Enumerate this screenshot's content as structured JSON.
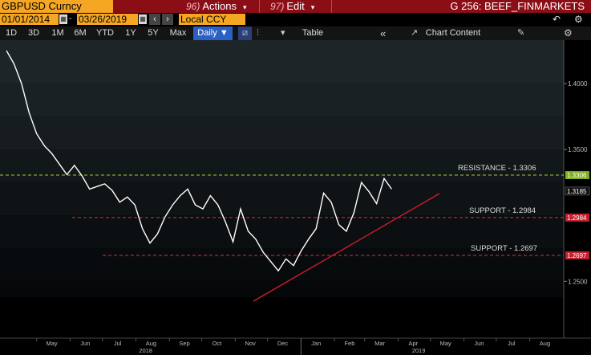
{
  "toolbar": {
    "ticker": "GBPUSD Curncy",
    "actions_num": "96)",
    "actions_label": "Actions",
    "edit_num": "97)",
    "edit_label": "Edit",
    "page_title": "G 256: BEEF_FINMARKETS"
  },
  "dates": {
    "start": "01/01/2014",
    "end": "03/26/2019",
    "currency": "Local CCY",
    "calendar_icon": "calendar-icon",
    "prev_icon": "chevron-left-icon",
    "next_icon": "chevron-right-icon"
  },
  "ranges": {
    "buttons": [
      "1D",
      "3D",
      "1M",
      "6M",
      "YTD",
      "1Y",
      "5Y",
      "Max"
    ],
    "frequency": "Daily",
    "table_label": "Table",
    "chart_content_label": "Chart Content"
  },
  "colors": {
    "topbar": "#8b0e17",
    "accent": "#f5a623",
    "active": "#2a61c7",
    "resistance": "#9acd32",
    "support": "#e0293a",
    "trend": "#d81c2c",
    "price_line": "#ffffff"
  },
  "chart_data": {
    "type": "line",
    "series": [
      {
        "x": [
          "2018-04-03",
          "2018-04-10",
          "2018-04-17",
          "2018-04-24",
          "2018-05-01",
          "2018-05-08",
          "2018-05-15",
          "2018-05-22",
          "2018-05-29",
          "2018-06-05",
          "2018-06-12",
          "2018-06-19",
          "2018-06-26",
          "2018-07-03",
          "2018-07-10",
          "2018-07-17",
          "2018-07-24",
          "2018-07-31",
          "2018-08-07",
          "2018-08-14",
          "2018-08-21",
          "2018-08-28",
          "2018-09-04",
          "2018-09-11",
          "2018-09-18",
          "2018-09-25",
          "2018-10-02",
          "2018-10-09",
          "2018-10-16",
          "2018-10-23",
          "2018-10-30",
          "2018-11-06",
          "2018-11-13",
          "2018-11-20",
          "2018-11-27",
          "2018-12-04",
          "2018-12-11",
          "2018-12-18",
          "2018-12-25",
          "2019-01-01",
          "2019-01-08",
          "2019-01-15",
          "2019-01-22",
          "2019-01-29",
          "2019-02-05",
          "2019-02-12",
          "2019-02-19",
          "2019-02-26",
          "2019-03-05",
          "2019-03-12",
          "2019-03-19",
          "2019-03-26"
        ],
        "values": [
          1.425,
          1.415,
          1.4,
          1.378,
          1.362,
          1.353,
          1.347,
          1.339,
          1.331,
          1.338,
          1.33,
          1.32,
          1.322,
          1.324,
          1.319,
          1.31,
          1.314,
          1.308,
          1.29,
          1.279,
          1.286,
          1.299,
          1.308,
          1.315,
          1.32,
          1.308,
          1.305,
          1.315,
          1.308,
          1.295,
          1.28,
          1.305,
          1.288,
          1.282,
          1.272,
          1.265,
          1.258,
          1.267,
          1.262,
          1.273,
          1.282,
          1.29,
          1.317,
          1.31,
          1.293,
          1.288,
          1.302,
          1.325,
          1.318,
          1.309,
          1.328,
          1.32
        ]
      }
    ],
    "x_month_labels": [
      "May",
      "Jun",
      "Jul",
      "Aug",
      "Sep",
      "Oct",
      "Nov",
      "Dec",
      "Jan",
      "Feb",
      "Mar",
      "Apr",
      "May",
      "Jun",
      "Jul",
      "Aug"
    ],
    "year_labels": [
      "2018",
      "2019"
    ],
    "y_ticks": [
      "1.4000",
      "1.3500",
      "1.2500"
    ],
    "ylim": [
      1.238,
      1.433
    ],
    "last_price": "1.3185",
    "annotations": [
      {
        "label": "RESISTANCE - 1.3306",
        "value": 1.3306,
        "tag": "1.3306"
      },
      {
        "label": "SUPPORT - 1.2984",
        "value": 1.2984,
        "tag": "1.2984"
      },
      {
        "label": "SUPPORT - 1.2697",
        "value": 1.2697,
        "tag": "1.2697"
      }
    ]
  }
}
